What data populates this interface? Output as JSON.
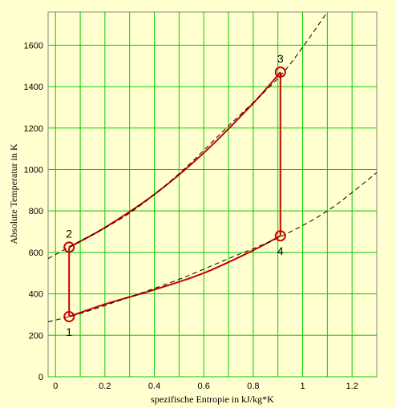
{
  "chart_data": {
    "type": "line",
    "title": "",
    "xlabel": "spezifische Entropie in kJ/kg*K",
    "ylabel": "Absolute Temperatur in K",
    "xlim": [
      -0.03,
      1.3
    ],
    "ylim": [
      0,
      1760
    ],
    "x_ticks": [
      0,
      0.2,
      0.4,
      0.6,
      0.8,
      1,
      1.2
    ],
    "x_tick_labels": [
      "0",
      "0.2",
      "0.4",
      "0.6",
      "0.8",
      "1",
      "1.2"
    ],
    "y_ticks": [
      0,
      200,
      400,
      600,
      800,
      1000,
      1200,
      1400,
      1600
    ],
    "y_tick_labels": [
      "0",
      "200",
      "400",
      "600",
      "800",
      "1000",
      "1200",
      "1400",
      "1600"
    ],
    "x_grid": [
      0.1,
      0.3,
      0.5,
      0.7,
      0.9,
      1.1
    ],
    "grid": true,
    "colors": {
      "background": "#ffffd0",
      "grid": "#00cc00",
      "cycle": "#cc0000",
      "isobar": "#000000"
    },
    "points": [
      {
        "label": "1",
        "x": 0.055,
        "y": 290
      },
      {
        "label": "2",
        "x": 0.055,
        "y": 625
      },
      {
        "label": "3",
        "x": 0.91,
        "y": 1470
      },
      {
        "label": "4",
        "x": 0.91,
        "y": 680
      }
    ],
    "series": [
      {
        "role": "cycle",
        "style": "solid",
        "x": [
          0.055,
          0.055,
          0.2,
          0.4,
          0.6,
          0.8,
          0.91,
          0.91,
          0.8,
          0.6,
          0.4,
          0.2,
          0.055
        ],
        "y": [
          290,
          625,
          720,
          880,
          1080,
          1320,
          1470,
          680,
          610,
          500,
          420,
          350,
          290
        ]
      },
      {
        "role": "upper-isobar",
        "style": "dashed",
        "x": [
          -0.03,
          0.1,
          0.3,
          0.5,
          0.7,
          0.9,
          1.0,
          1.1
        ],
        "y": [
          570,
          655,
          790,
          980,
          1210,
          1440,
          1590,
          1760
        ]
      },
      {
        "role": "lower-isobar",
        "style": "dashed",
        "x": [
          -0.03,
          0.1,
          0.3,
          0.5,
          0.7,
          0.9,
          1.1,
          1.3
        ],
        "y": [
          265,
          305,
          385,
          470,
          570,
          670,
          800,
          985
        ]
      }
    ]
  }
}
